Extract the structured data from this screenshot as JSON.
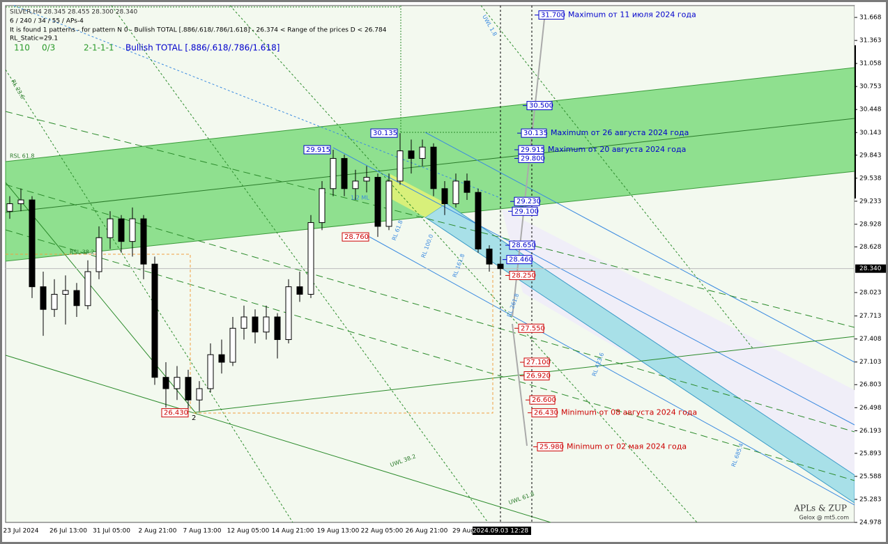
{
  "chart_data": {
    "type": "candlestick",
    "header": [
      "SILVER,H4  28.345 28.455 28.300 28.340",
      "6 / 240 / 34 / 55 / APs-4",
      "It is found 1 patterns  -  for pattern N 0 - Bullish TOTAL [.886/.618/.786/1.618] - 26.374 < Range of the prices D < 26.784",
      "RL_Static=29.1"
    ],
    "status": [
      "110",
      "0/3",
      "2-1-1-1",
      "Bullish TOTAL [.886/.618/.786/1.618]"
    ],
    "watermark": [
      "APLs & ZUP",
      "Gelox @ mt5.com"
    ],
    "x_labels": [
      "23 Jul 2024",
      "26 Jul 13:00",
      "31 Jul 05:00",
      "2 Aug 21:00",
      "7 Aug 13:00",
      "12 Aug 05:00",
      "14 Aug 21:00",
      "19 Aug 13:00",
      "22 Aug 05:00",
      "26 Aug 21:00",
      "29 Aug",
      "2024.09.03 12:28"
    ],
    "open": [
      29.1,
      29.2,
      29.25,
      28.1,
      27.8,
      28.0,
      28.05,
      27.85,
      28.3,
      28.75,
      29.0,
      28.7,
      29.0,
      28.4,
      26.9,
      26.75,
      26.9,
      26.6,
      26.75,
      27.2,
      27.1,
      27.55,
      27.7,
      27.5,
      27.7,
      27.4,
      28.1,
      28.0,
      28.95,
      29.4,
      29.8,
      29.4,
      29.5,
      29.55,
      28.9,
      29.5,
      29.9,
      29.8,
      29.95,
      29.4,
      29.2,
      29.5,
      29.35,
      28.6,
      28.4
    ],
    "high": [
      29.3,
      29.4,
      29.3,
      28.3,
      28.2,
      28.25,
      28.15,
      28.45,
      28.9,
      29.1,
      29.05,
      29.15,
      29.05,
      28.5,
      27.1,
      27.05,
      27.0,
      26.85,
      27.35,
      27.4,
      27.7,
      27.85,
      27.8,
      27.85,
      27.75,
      28.2,
      28.3,
      29.05,
      29.5,
      29.915,
      29.85,
      29.65,
      29.7,
      29.6,
      29.6,
      30.135,
      30.05,
      30.05,
      30.0,
      29.5,
      29.6,
      29.6,
      29.4,
      28.65,
      28.5
    ],
    "low": [
      29.0,
      29.1,
      27.95,
      27.45,
      27.7,
      27.6,
      27.7,
      27.8,
      28.2,
      28.6,
      28.55,
      28.5,
      28.2,
      26.8,
      26.5,
      26.6,
      26.43,
      26.45,
      26.7,
      26.95,
      27.05,
      27.4,
      27.35,
      27.4,
      27.15,
      27.35,
      27.9,
      27.95,
      28.85,
      29.3,
      29.3,
      29.25,
      29.35,
      28.76,
      28.85,
      29.45,
      29.6,
      29.7,
      29.3,
      29.05,
      29.15,
      29.25,
      28.55,
      28.3,
      28.25
    ],
    "close": [
      29.2,
      29.25,
      28.1,
      27.8,
      28.0,
      28.05,
      27.85,
      28.3,
      28.75,
      29.0,
      28.7,
      29.0,
      28.4,
      26.9,
      26.75,
      26.9,
      26.6,
      26.75,
      27.2,
      27.1,
      27.55,
      27.7,
      27.5,
      27.7,
      27.4,
      28.1,
      28.0,
      28.95,
      29.4,
      29.8,
      29.4,
      29.5,
      29.55,
      28.9,
      29.5,
      29.9,
      29.8,
      29.95,
      29.4,
      29.2,
      29.5,
      29.35,
      28.6,
      28.4,
      28.34
    ],
    "ylim": [
      24.978,
      31.825
    ],
    "yticks": [
      31.668,
      31.363,
      31.058,
      30.753,
      30.448,
      30.143,
      29.843,
      29.538,
      29.233,
      28.928,
      28.628,
      28.023,
      27.713,
      27.408,
      27.103,
      26.803,
      26.498,
      26.193,
      25.893,
      25.588,
      25.283,
      24.978
    ],
    "current_price": {
      "value": 28.34,
      "label": "28.340"
    },
    "levels": [
      {
        "value": 31.7,
        "label": "31.700",
        "color": "#0000cc",
        "note": "Maximum от 11 июля 2024 года"
      },
      {
        "value": 30.5,
        "label": "30.500",
        "color": "#0000cc"
      },
      {
        "value": 30.135,
        "label": "30.135",
        "color": "#0000cc",
        "note": "Maximum от 26 августа 2024 года"
      },
      {
        "value": 29.915,
        "label": "29.915",
        "color": "#0000cc",
        "note": "Maximum от 20 августа 2024 года"
      },
      {
        "value": 29.8,
        "label": "29.800",
        "color": "#0000cc"
      },
      {
        "value": 29.23,
        "label": "29.230",
        "color": "#0000cc"
      },
      {
        "value": 29.1,
        "label": "29.100",
        "color": "#0000cc"
      },
      {
        "value": 28.65,
        "label": "28.650",
        "color": "#0000cc"
      },
      {
        "value": 28.46,
        "label": "28.460",
        "color": "#0000cc"
      },
      {
        "value": 28.25,
        "label": "28.250",
        "color": "#cc0000"
      },
      {
        "value": 27.55,
        "label": "27.550",
        "color": "#cc0000"
      },
      {
        "value": 27.1,
        "label": "27.100",
        "color": "#cc0000"
      },
      {
        "value": 26.92,
        "label": "26.920",
        "color": "#cc0000"
      },
      {
        "value": 26.6,
        "label": "26.600",
        "color": "#cc0000"
      },
      {
        "value": 26.43,
        "label": "26.430",
        "color": "#cc0000",
        "note": "Minimum от 08 августа 2024 года"
      },
      {
        "value": 25.98,
        "label": "25.980",
        "color": "#cc0000",
        "note": "Minimum от 02 мая 2024 года"
      }
    ],
    "point_labels": [
      {
        "value": 29.915,
        "label": "29.915",
        "color": "#0000cc"
      },
      {
        "value": 30.135,
        "label": "30.135",
        "color": "#0000cc"
      },
      {
        "value": 28.76,
        "label": "28.760",
        "color": "#cc0000"
      },
      {
        "value": 26.43,
        "label": "26.430",
        "color": "#cc0000"
      }
    ],
    "point_name": "2",
    "annotations": [
      "RSL 61.8",
      "RSL 38.2",
      "RL 23.6",
      "UWL 38.2",
      "UWL 61.8",
      "RL 61.8",
      "RL 100.0",
      "RL 161.8",
      "RL 261.8",
      "RL 423.6",
      "RL 685.4",
      "1/2 ML",
      "UWL 1.8"
    ]
  }
}
